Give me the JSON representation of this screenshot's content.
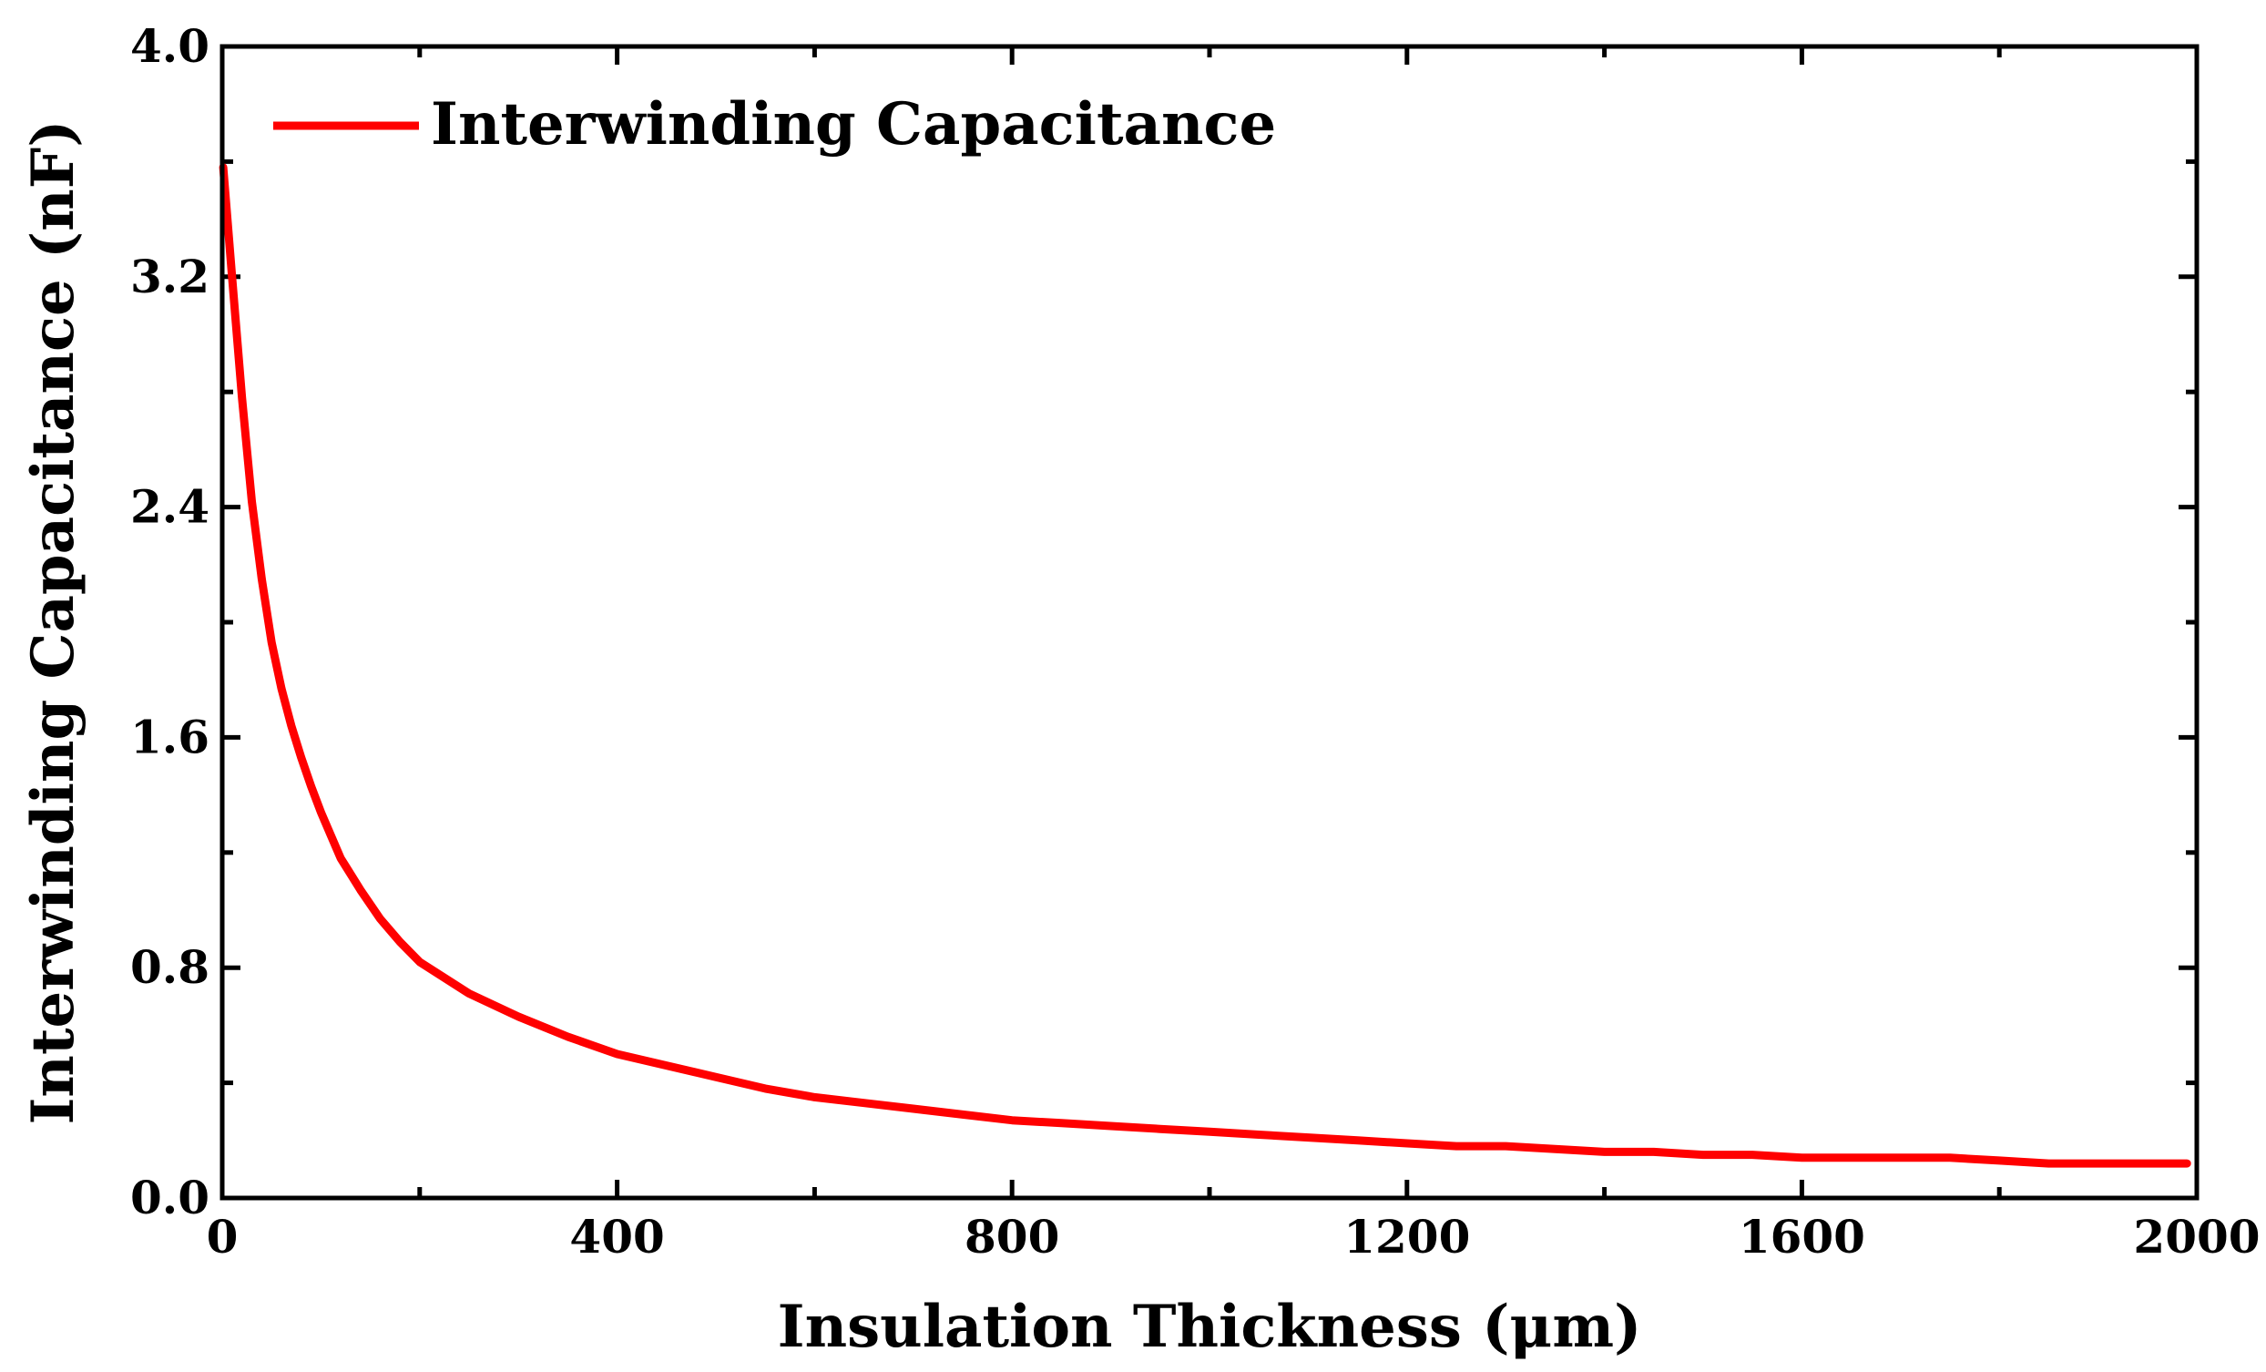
{
  "chart_data": {
    "type": "line",
    "title": "",
    "xlabel": "Insulation Thickness (μm)",
    "ylabel": "Interwinding Capacitance (nF)",
    "xlim": [
      0,
      2000
    ],
    "ylim": [
      0,
      4.0
    ],
    "x_ticks": [
      "0",
      "400",
      "800",
      "1200",
      "1600",
      "2000"
    ],
    "y_ticks": [
      "0.0",
      "0.8",
      "1.6",
      "2.4",
      "3.2",
      "4.0"
    ],
    "grid": false,
    "legend_position": "top-left",
    "series": [
      {
        "name": "Interwinding Capacitance",
        "color": "#ff0000",
        "x": [
          1,
          10,
          20,
          30,
          40,
          50,
          60,
          70,
          80,
          90,
          100,
          110,
          120,
          140,
          160,
          180,
          200,
          250,
          300,
          350,
          400,
          450,
          500,
          550,
          600,
          650,
          700,
          750,
          800,
          850,
          900,
          950,
          1000,
          1050,
          1100,
          1150,
          1200,
          1250,
          1300,
          1350,
          1400,
          1450,
          1500,
          1550,
          1600,
          1650,
          1700,
          1750,
          1800,
          1850,
          1900,
          1950,
          1990
        ],
        "y": [
          3.58,
          3.2,
          2.78,
          2.42,
          2.15,
          1.93,
          1.77,
          1.64,
          1.53,
          1.43,
          1.34,
          1.26,
          1.18,
          1.07,
          0.97,
          0.89,
          0.82,
          0.71,
          0.63,
          0.56,
          0.5,
          0.46,
          0.42,
          0.38,
          0.35,
          0.33,
          0.31,
          0.29,
          0.27,
          0.26,
          0.25,
          0.24,
          0.23,
          0.22,
          0.21,
          0.2,
          0.19,
          0.18,
          0.18,
          0.17,
          0.16,
          0.16,
          0.15,
          0.15,
          0.14,
          0.14,
          0.14,
          0.14,
          0.13,
          0.12,
          0.12,
          0.12,
          0.12
        ]
      }
    ]
  }
}
